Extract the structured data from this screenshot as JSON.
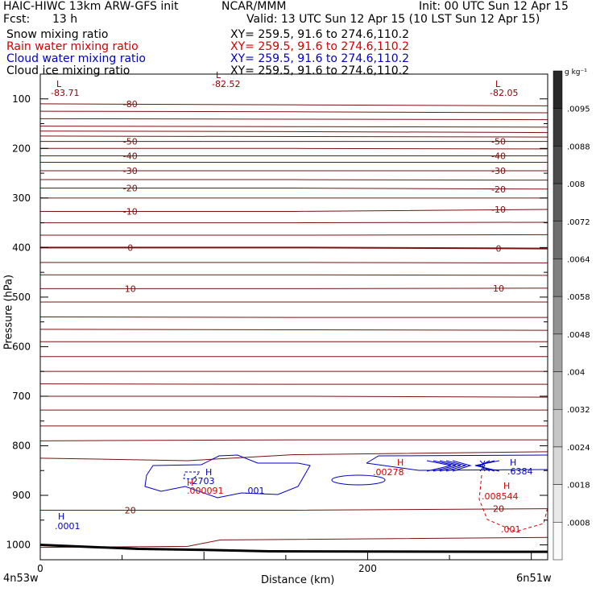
{
  "header": {
    "model": "HAIC-HIWC 13km ARW-GFS init",
    "org": "NCAR/MMM",
    "init": "Init: 00 UTC Sun 12 Apr 15",
    "fcst_label": "Fcst:",
    "fcst_value": "13 h",
    "valid": "Valid: 13 UTC Sun 12 Apr 15 (10 LST Sun 12 Apr 15)"
  },
  "fields": [
    {
      "name": "Snow mixing ratio",
      "xy": "XY= 259.5, 91.6 to 274.6,110.2",
      "color": "#000000"
    },
    {
      "name": "Rain water mixing ratio",
      "xy": "XY= 259.5, 91.6 to 274.6,110.2",
      "color": "#d40000"
    },
    {
      "name": "Cloud water mixing ratio",
      "xy": "XY= 259.5, 91.6 to 274.6,110.2",
      "color": "#0000c8"
    },
    {
      "name": "Cloud ice mixing ratio",
      "xy": "XY= 259.5, 91.6 to 274.6,110.2",
      "color": "#000000"
    }
  ],
  "chart_data": {
    "type": "line",
    "description_type": "vertical cross-section contour plot",
    "xlabel": "Distance (km)",
    "ylabel": "Pressure (hPa)",
    "x_ticks": [
      0,
      200
    ],
    "xlim": [
      0,
      310
    ],
    "y_ticks": [
      100,
      200,
      300,
      400,
      500,
      600,
      700,
      800,
      900,
      1000
    ],
    "ylim": [
      50,
      1030
    ],
    "x_endpoints": {
      "left": "4n53w",
      "right": "6n51w"
    },
    "colorbar": {
      "unit": "g kg⁻¹",
      "levels": [
        ".0095",
        ".0088",
        ".008",
        ".0072",
        ".0064",
        ".0058",
        ".0048",
        ".004",
        ".0032",
        ".0024",
        ".0018",
        ".0008"
      ]
    },
    "temperature_contours": [
      {
        "label": "-80",
        "p": [
          110,
          112,
          114
        ]
      },
      {
        "label": "-50",
        "p": [
          186,
          186,
          186
        ]
      },
      {
        "label": "-40",
        "p": [
          215,
          215,
          215
        ]
      },
      {
        "label": "-30",
        "p": [
          245,
          245,
          245
        ]
      },
      {
        "label": "-20",
        "p": [
          280,
          280,
          282
        ]
      },
      {
        "label": "-10",
        "p": [
          327,
          327,
          323
        ]
      },
      {
        "label": "0",
        "p": [
          400,
          400,
          402
        ]
      },
      {
        "label": "10",
        "p": [
          483,
          483,
          482
        ]
      },
      {
        "label": "20",
        "p": [
          930,
          930,
          927
        ]
      }
    ],
    "extrema": [
      {
        "type": "L",
        "value": "-83.71",
        "color": "#8b0000"
      },
      {
        "type": "L",
        "value": "-82.52",
        "color": "#8b0000"
      },
      {
        "type": "L",
        "value": "-82.05",
        "color": "#8b0000"
      },
      {
        "type": "H",
        "value": ".2703",
        "color": "#0000c8"
      },
      {
        "type": "H",
        "value": ".000091",
        "color": "#d40000"
      },
      {
        "type": "H",
        "value": ".0001",
        "color": "#0000c8"
      },
      {
        "type": "H",
        "value": ".6384",
        "color": "#0000c8"
      },
      {
        "type": "H",
        "value": ".008544",
        "color": "#d40000"
      },
      {
        "type": "H",
        "value": ".00278",
        "color": "#d40000"
      }
    ],
    "contour_labels": [
      {
        "value": ".001",
        "color": "#0000c8"
      },
      {
        "value": ".001",
        "color": "#d40000"
      }
    ]
  }
}
